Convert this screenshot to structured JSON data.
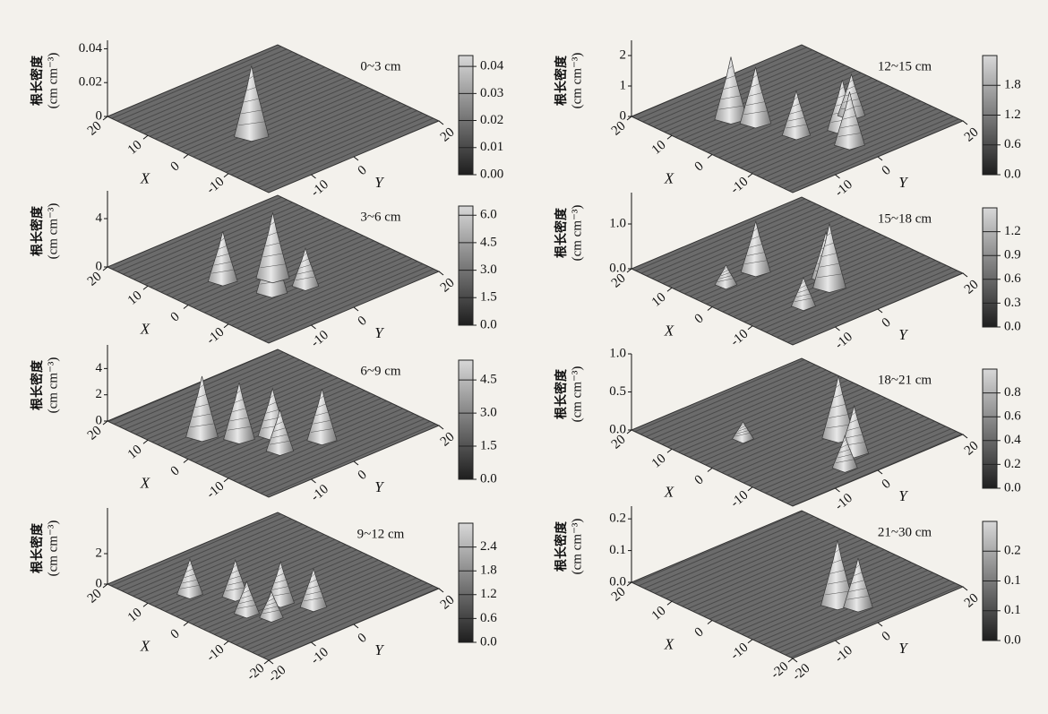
{
  "chart_data": [
    {
      "type": "surface3d",
      "title": "0~3 cm",
      "zlabel": "根长密度",
      "zunit": "(cm cm⁻³)",
      "xlabel": "X",
      "ylabel": "Y",
      "xlim": [
        -20,
        20
      ],
      "ylim": [
        -20,
        20
      ],
      "xticks": [
        20,
        10,
        0,
        -10
      ],
      "yticks": [
        -10,
        0,
        20
      ],
      "zlim": [
        0,
        0.045
      ],
      "zticks": [
        0,
        0.02,
        0.04
      ],
      "clim": [
        0,
        0.044
      ],
      "cticks": [
        {
          "value": 0,
          "label": "0.00"
        },
        0.01,
        0.02,
        0.03,
        0.04
      ],
      "peaks": {
        "x": [
          -2
        ],
        "y": [
          -7
        ],
        "values": [
          0.041
        ]
      }
    },
    {
      "type": "surface3d",
      "title": "3~6 cm",
      "zlabel": "根长密度",
      "zunit": "(cm cm⁻³)",
      "xlabel": "X",
      "ylabel": "Y",
      "xlim": [
        -20,
        20
      ],
      "ylim": [
        -20,
        20
      ],
      "xticks": [
        20,
        10,
        0,
        -10
      ],
      "yticks": [
        -10,
        0,
        20
      ],
      "zlim": [
        0,
        6.3
      ],
      "zticks": [
        0,
        4
      ],
      "clim": [
        0,
        6.5
      ],
      "cticks": [
        {
          "value": 0,
          "label": "0.0"
        },
        1.5,
        {
          "value": 3,
          "label": "3.0"
        },
        4.5,
        {
          "value": 6,
          "label": "6.0"
        }
      ],
      "peaks": {
        "x": [
          -6,
          -2,
          3,
          -8
        ],
        "y": [
          -6,
          -2,
          -9,
          0
        ],
        "values": [
          4.5,
          5.3,
          4.0,
          3.0
        ]
      }
    },
    {
      "type": "surface3d",
      "title": "6~9 cm",
      "zlabel": "根长密度",
      "zunit": "(cm cm⁻³)",
      "xlabel": "X",
      "ylabel": "Y",
      "xlim": [
        -20,
        20
      ],
      "ylim": [
        -20,
        20
      ],
      "xticks": [
        20,
        10,
        0,
        -10
      ],
      "yticks": [
        -10,
        0,
        20
      ],
      "zlim": [
        0,
        5.8
      ],
      "zticks": [
        0,
        2,
        4
      ],
      "clim": [
        0,
        5.4
      ],
      "cticks": [
        {
          "value": 0,
          "label": "0.0"
        },
        1.5,
        {
          "value": 3,
          "label": "3.0"
        },
        4.5
      ],
      "peaks": {
        "x": [
          5,
          0,
          -3,
          -10,
          -8
        ],
        "y": [
          -12,
          -8,
          -3,
          2,
          -6
        ],
        "values": [
          4.5,
          4.2,
          3.5,
          3.8,
          3.0
        ]
      }
    },
    {
      "type": "surface3d",
      "title": "9~12 cm",
      "zlabel": "根长密度",
      "zunit": "(cm cm⁻³)",
      "xlabel": "X",
      "ylabel": "Y",
      "xlim": [
        -20,
        20
      ],
      "ylim": [
        -20,
        20
      ],
      "xticks": [
        20,
        10,
        0,
        -10,
        -20
      ],
      "yticks": [
        -20,
        -10,
        0,
        20
      ],
      "zlim": [
        0,
        5
      ],
      "zticks": [
        0,
        2
      ],
      "clim": [
        0,
        3.0
      ],
      "cticks": [
        {
          "value": 0,
          "label": "0.0"
        },
        0.6,
        1.2,
        1.8,
        2.4
      ],
      "peaks": {
        "x": [
          8,
          2,
          -5,
          -10,
          -8,
          -4
        ],
        "y": [
          -12,
          -7,
          -3,
          0,
          -8,
          -10
        ],
        "values": [
          2.2,
          2.3,
          2.6,
          2.4,
          1.6,
          2.0
        ]
      }
    },
    {
      "type": "surface3d",
      "title": "12~15 cm",
      "zlabel": "根长密度",
      "zunit": "(cm cm⁻³)",
      "xlabel": "X",
      "ylabel": "Y",
      "xlim": [
        -20,
        20
      ],
      "ylim": [
        -20,
        20
      ],
      "xticks": [
        20,
        10,
        0,
        -10
      ],
      "yticks": [
        -10,
        0,
        20
      ],
      "zlim": [
        0,
        2.5
      ],
      "zticks": [
        0,
        1,
        2
      ],
      "clim": [
        0,
        2.4
      ],
      "cticks": [
        {
          "value": 0,
          "label": "0.0"
        },
        0.6,
        1.2,
        1.8
      ],
      "peaks": {
        "x": [
          8,
          4,
          -4,
          -8,
          -5,
          -13
        ],
        "y": [
          -8,
          -6,
          -4,
          3,
          8,
          0
        ],
        "values": [
          2.0,
          1.8,
          1.4,
          1.6,
          1.3,
          1.7
        ]
      }
    },
    {
      "type": "surface3d",
      "title": "15~18 cm",
      "zlabel": "根长密度",
      "zunit": "(cm cm⁻³)",
      "xlabel": "X",
      "ylabel": "Y",
      "xlim": [
        -20,
        20
      ],
      "ylim": [
        -20,
        20
      ],
      "xticks": [
        20,
        10,
        0,
        -10
      ],
      "yticks": [
        -10,
        0,
        20
      ],
      "zlim": [
        0,
        1.7
      ],
      "zticks": [
        {
          "value": 0,
          "label": "0.0"
        },
        {
          "value": 1,
          "label": "1.0"
        }
      ],
      "clim": [
        0,
        1.5
      ],
      "cticks": [
        {
          "value": 0,
          "label": "0.0"
        },
        0.3,
        0.6,
        0.9,
        1.2
      ],
      "peaks": {
        "x": [
          5,
          -5,
          -8,
          -10,
          5
        ],
        "y": [
          -5,
          2,
          0,
          -8,
          -12
        ],
        "values": [
          1.1,
          1.0,
          1.4,
          0.6,
          0.4
        ]
      }
    },
    {
      "type": "surface3d",
      "title": "18~21 cm",
      "zlabel": "根长密度",
      "zunit": "(cm cm⁻³)",
      "xlabel": "X",
      "ylabel": "Y",
      "xlim": [
        -20,
        20
      ],
      "ylim": [
        -20,
        20
      ],
      "xticks": [
        20,
        10,
        0,
        -10
      ],
      "yticks": [
        -10,
        0,
        20
      ],
      "zlim": [
        0,
        1.0
      ],
      "zticks": [
        {
          "value": 0,
          "label": "0.0"
        },
        0.5,
        {
          "value": 1,
          "label": "1.0"
        }
      ],
      "clim": [
        0,
        1.0
      ],
      "cticks": [
        {
          "value": 0,
          "label": "0.0"
        },
        0.2,
        0.4,
        0.6,
        0.8
      ],
      "peaks": {
        "x": [
          -6,
          -12,
          -15,
          5
        ],
        "y": [
          4,
          2,
          -3,
          -8
        ],
        "values": [
          0.8,
          0.6,
          0.4,
          0.2
        ]
      }
    },
    {
      "type": "surface3d",
      "title": "21~30 cm",
      "zlabel": "根长密度",
      "zunit": "(cm cm⁻³)",
      "xlabel": "X",
      "ylabel": "Y",
      "xlim": [
        -20,
        20
      ],
      "ylim": [
        -20,
        20
      ],
      "xticks": [
        20,
        10,
        0,
        -10,
        -20
      ],
      "yticks": [
        -20,
        -10,
        0,
        20
      ],
      "zlim": [
        0,
        0.24
      ],
      "zticks": [
        {
          "value": 0,
          "label": "0.0"
        },
        0.1,
        0.2
      ],
      "clim": [
        0,
        0.2
      ],
      "cticks": [
        {
          "value": 0,
          "label": "0.0"
        },
        {
          "value": 0.05,
          "label": "0.1"
        },
        {
          "value": 0.1,
          "label": "0.1"
        },
        {
          "value": 0.15,
          "label": "0.2"
        }
      ],
      "peaks": {
        "x": [
          -10,
          -13
        ],
        "y": [
          0,
          2
        ],
        "values": [
          0.2,
          0.15
        ]
      }
    }
  ]
}
